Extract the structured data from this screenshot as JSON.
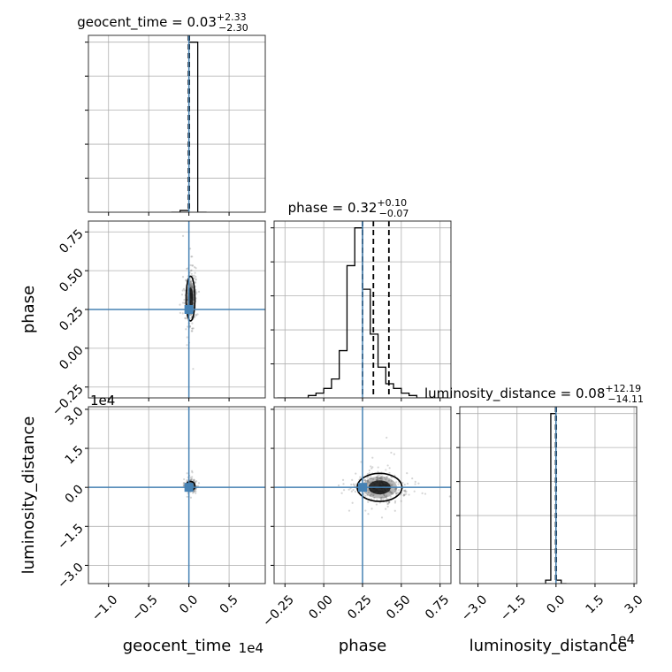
{
  "chart_data": {
    "type": "corner",
    "parameters": [
      "geocent_time",
      "phase",
      "luminosity_distance"
    ],
    "axis_labels": {
      "geocent_time": "geocent_time",
      "phase": "phase",
      "luminosity_distance": "luminosity_distance"
    },
    "multiplier_labels": {
      "geocent_time": "1e4",
      "luminosity_distance": "1e4"
    },
    "ranges": {
      "geocent_time": [
        -1.25,
        0.95
      ],
      "phase": [
        -0.32,
        0.82
      ],
      "luminosity_distance": [
        -3.7,
        3.1
      ]
    },
    "ticks": {
      "geocent_time": {
        "values": [
          -1.0,
          -0.5,
          0.0,
          0.5
        ],
        "labels": [
          "−1.0",
          "−0.5",
          "0.0",
          "0.5"
        ]
      },
      "phase": {
        "values": [
          -0.25,
          0.0,
          0.25,
          0.5,
          0.75
        ],
        "labels": [
          "−0.25",
          "0.00",
          "0.25",
          "0.50",
          "0.75"
        ]
      },
      "luminosity_distance": {
        "values": [
          -3.0,
          -1.5,
          0.0,
          1.5,
          3.0
        ],
        "labels": [
          "−3.0",
          "−1.5",
          "0.0",
          "1.5",
          "3.0"
        ]
      }
    },
    "truths": {
      "geocent_time": 0.0,
      "phase": 0.25,
      "luminosity_distance": 0.0
    },
    "truth_color": "#4682b4",
    "line_color": "#000000",
    "grid": true,
    "titles": [
      {
        "param": "geocent_time",
        "text": "geocent_time = 0.03",
        "plus": "+2.33",
        "minus": "−2.30"
      },
      {
        "param": "phase",
        "text": "phase = 0.32",
        "plus": "+0.10",
        "minus": "−0.07"
      },
      {
        "param": "luminosity_distance",
        "text": "luminosity_distance = 0.08",
        "plus": "+12.19",
        "minus": "−14.11"
      }
    ],
    "histograms": {
      "geocent_time": {
        "edges": [
          -0.22,
          -0.11,
          0.0,
          0.11,
          0.22
        ],
        "counts": [
          0,
          0.01,
          1.0,
          0.0
        ],
        "quantiles": [
          -0.005,
          0.0,
          0.005
        ]
      },
      "phase": {
        "edges": [
          -0.3,
          -0.25,
          -0.2,
          -0.15,
          -0.1,
          -0.05,
          0.0,
          0.05,
          0.1,
          0.15,
          0.2,
          0.25,
          0.3,
          0.35,
          0.4,
          0.45,
          0.5,
          0.55,
          0.6,
          0.65,
          0.7,
          0.75,
          0.8
        ],
        "counts": [
          0,
          0,
          0,
          0,
          0.01,
          0.02,
          0.04,
          0.08,
          0.2,
          0.56,
          0.72,
          0.46,
          0.27,
          0.13,
          0.06,
          0.04,
          0.02,
          0.01,
          0,
          0,
          0,
          0
        ],
        "quantiles": [
          0.25,
          0.32,
          0.42
        ]
      },
      "luminosity_distance": {
        "edges": [
          -0.4,
          -0.2,
          0.0,
          0.2,
          0.4
        ],
        "counts": [
          0.02,
          1.0,
          0.02,
          0
        ],
        "quantiles": [
          -0.01,
          0.0,
          0.01
        ]
      }
    },
    "scatter_spread": {
      "phase_vs_geocent_time": {
        "cx": 0.02,
        "sx": 0.03,
        "cy": 0.32,
        "sy": 0.08
      },
      "luminosity_distance_vs_geocent_time": {
        "cx": 0.02,
        "sx": 0.03,
        "cy": 0.05,
        "sy": 0.1
      },
      "luminosity_distance_vs_phase": {
        "cx": 0.36,
        "sx": 0.08,
        "cy": 0.0,
        "sy": 0.3
      }
    }
  }
}
